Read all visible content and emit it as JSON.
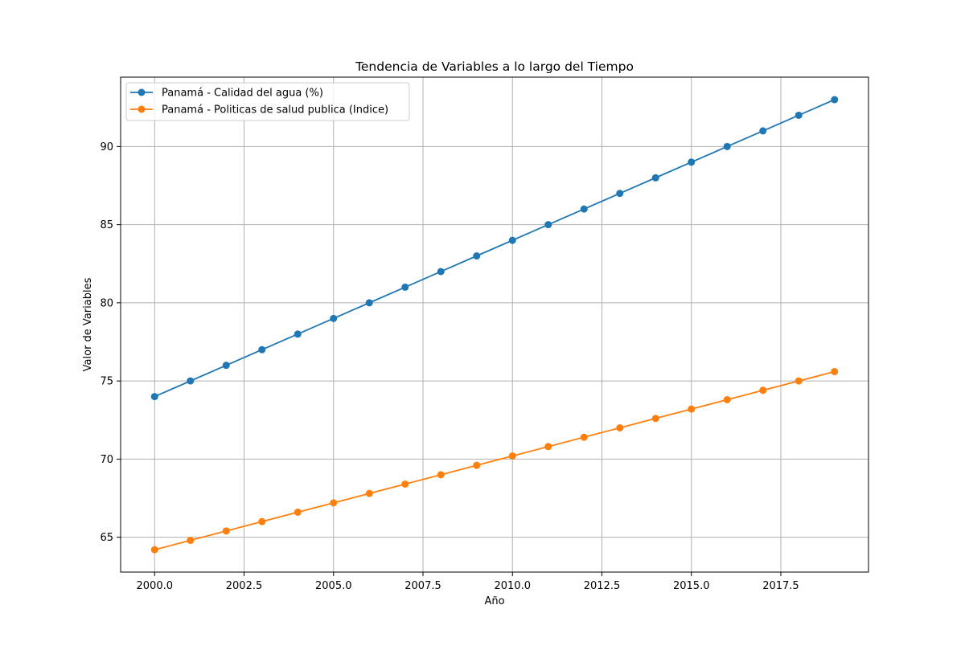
{
  "chart_data": {
    "type": "line",
    "title": "Tendencia de Variables a lo largo del Tiempo",
    "xlabel": "Año",
    "ylabel": "Valor de Variables",
    "x": [
      2000,
      2001,
      2002,
      2003,
      2004,
      2005,
      2006,
      2007,
      2008,
      2009,
      2010,
      2011,
      2012,
      2013,
      2014,
      2015,
      2016,
      2017,
      2018,
      2019
    ],
    "series": [
      {
        "name": "Panamá - Calidad del agua (%)",
        "color": "#1f77b4",
        "values": [
          74,
          75,
          76,
          77,
          78,
          79,
          80,
          81,
          82,
          83,
          84,
          85,
          86,
          87,
          88,
          89,
          90,
          91,
          92,
          93
        ]
      },
      {
        "name": "Panamá - Politicas de salud publica (Indice)",
        "color": "#ff7f0e",
        "values": [
          64.2,
          64.8,
          65.4,
          66.0,
          66.6,
          67.2,
          67.8,
          68.4,
          69.0,
          69.6,
          70.2,
          70.8,
          71.4,
          72.0,
          72.6,
          73.2,
          73.8,
          74.4,
          75.0,
          75.6
        ]
      }
    ],
    "xlim": [
      1999.05,
      2019.95
    ],
    "ylim": [
      62.77,
      94.44
    ],
    "x_ticks": [
      2000,
      2002.5,
      2005,
      2007.5,
      2010,
      2012.5,
      2015,
      2017.5
    ],
    "x_tick_labels": [
      "2000.0",
      "2002.5",
      "2005.0",
      "2007.5",
      "2010.0",
      "2012.5",
      "2015.0",
      "2017.5"
    ],
    "y_ticks": [
      65,
      70,
      75,
      80,
      85,
      90
    ],
    "y_tick_labels": [
      "65",
      "70",
      "75",
      "80",
      "85",
      "90"
    ],
    "grid": true,
    "legend_position": "top-left",
    "marker": "circle"
  }
}
